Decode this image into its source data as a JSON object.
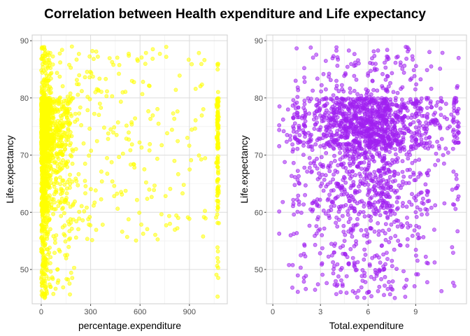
{
  "chart_data": [
    {
      "type": "scatter",
      "title": "Correlation between Health expenditure and Life expectancy",
      "xlabel": "percentage.expenditure",
      "ylabel": "Life.expectancy",
      "xlim": [
        -55,
        1130
      ],
      "ylim": [
        44,
        91
      ],
      "x_ticks": [
        0,
        300,
        600,
        900
      ],
      "y_ticks": [
        50,
        60,
        70,
        80,
        90
      ],
      "grid": true,
      "point_color": "#FFFF00",
      "x_distribution": {
        "median": 60,
        "max": 1075,
        "pile_up_at": 1075
      },
      "y_distribution": {
        "min": 45,
        "max": 89,
        "dense_band": [
          71,
          80
        ]
      }
    },
    {
      "type": "scatter",
      "xlabel": "Total.expenditure",
      "ylabel": "Life.expectancy",
      "xlim": [
        -0.4,
        12.2
      ],
      "ylim": [
        44,
        91
      ],
      "x_ticks": [
        0,
        3,
        6,
        9
      ],
      "y_ticks": [
        50,
        60,
        70,
        80,
        90
      ],
      "grid": true,
      "point_color": "#A020F0",
      "x_distribution": {
        "range": [
          0.4,
          11.7
        ],
        "peak": 6,
        "pile_up_at": [
          7,
          11.5
        ]
      },
      "y_distribution": {
        "min": 45,
        "max": 89,
        "dense_band": [
          71,
          80
        ]
      }
    }
  ]
}
